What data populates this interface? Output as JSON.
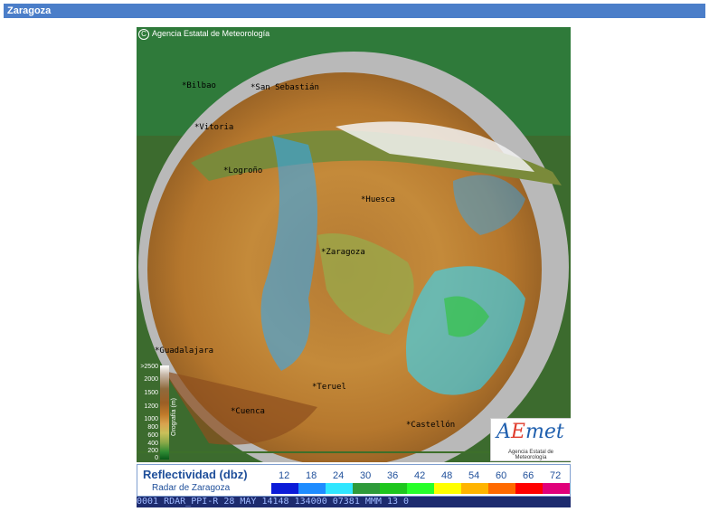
{
  "page": {
    "title": "Zaragoza"
  },
  "radar": {
    "copyright": "Agencia Estatal de Meteorología",
    "copyright_symbol": "C",
    "cities": [
      {
        "name": "Bilbao"
      },
      {
        "name": "San Sebastián"
      },
      {
        "name": "Vitoria"
      },
      {
        "name": "Logroño"
      },
      {
        "name": "Huesca"
      },
      {
        "name": "Zaragoza"
      },
      {
        "name": "Guadalajara"
      },
      {
        "name": "Teruel"
      },
      {
        "name": "Cuenca"
      },
      {
        "name": "Castellón"
      }
    ],
    "orography": {
      "title": "Orografía (m)",
      "levels": [
        ">2500",
        "2000",
        "1500",
        "1200",
        "1000",
        "800",
        "600",
        "400",
        "200",
        "0"
      ]
    },
    "logo": {
      "text_a": "A",
      "text_e": "E",
      "text_rest": "met",
      "subtitle": "Agencia Estatal de Meteorología"
    }
  },
  "legend": {
    "title": "Reflectividad (dbz)",
    "subtitle": "Radar de Zaragoza",
    "values": [
      "12",
      "18",
      "24",
      "30",
      "36",
      "42",
      "48",
      "54",
      "60",
      "66",
      "72"
    ],
    "colors": [
      "#0b1bd8",
      "#1e8cff",
      "#30e6ff",
      "#2e9a3a",
      "#1ec61e",
      "#27ff2a",
      "#ffff00",
      "#ffb400",
      "#ff6a00",
      "#ff0000",
      "#e0007a"
    ]
  },
  "status": {
    "text": "0001 RDAR_PPI-R   28 MAY 14148 134000 07381 MMM 13 0"
  },
  "colors": {
    "titlebar": "#4b7ec9",
    "status_bg": "#1d2b6e"
  }
}
